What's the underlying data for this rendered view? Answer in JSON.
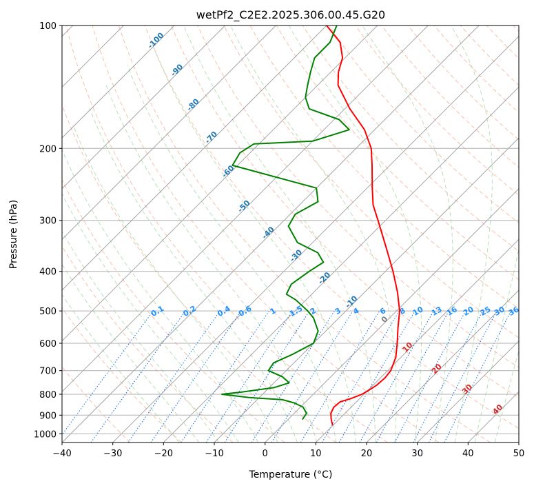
{
  "chart_data": {
    "type": "line",
    "subtype": "skew-t log-p",
    "title": "wetPf2_C2E2.2025.306.00.45.G20",
    "xlabel": "Temperature (°C)",
    "ylabel": "Pressure (hPa)",
    "xlim": [
      -40,
      50
    ],
    "ylim_hpa": [
      1050,
      100
    ],
    "x_ticks": [
      -40,
      -30,
      -20,
      -10,
      0,
      10,
      20,
      30,
      40,
      50
    ],
    "x_tick_labels": [
      "−40",
      "−30",
      "−20",
      "−10",
      "0",
      "10",
      "20",
      "30",
      "40",
      "50"
    ],
    "y_ticks": [
      100,
      200,
      300,
      400,
      500,
      600,
      700,
      800,
      900,
      1000
    ],
    "y_tick_labels": [
      "100",
      "200",
      "300",
      "400",
      "500",
      "600",
      "700",
      "800",
      "900",
      "1000"
    ],
    "grid": true,
    "colors": {
      "temperature": "#ff0000",
      "dewpoint": "#008000",
      "isotherm": "#888888",
      "dry_adiabat": "#f4a58a",
      "moist_adiabat": "#a6d8a6",
      "mixing_ratio": "#1f77e4",
      "isotherm_label_cold": "#1f77b4",
      "isotherm_label_zero": "#808080",
      "isotherm_label_warm": "#d62728",
      "mixing_ratio_label": "#1e90ff"
    },
    "series": [
      {
        "name": "Temperature",
        "color": "#ff0000",
        "points": [
          {
            "p": 950,
            "t": 9.8
          },
          {
            "p": 920,
            "t": 8.4
          },
          {
            "p": 890,
            "t": 7.2
          },
          {
            "p": 860,
            "t": 6.6
          },
          {
            "p": 835,
            "t": 6.8
          },
          {
            "p": 820,
            "t": 8.2
          },
          {
            "p": 800,
            "t": 9.6
          },
          {
            "p": 780,
            "t": 10.2
          },
          {
            "p": 760,
            "t": 10.7
          },
          {
            "p": 730,
            "t": 10.9
          },
          {
            "p": 700,
            "t": 10.6
          },
          {
            "p": 650,
            "t": 9.0
          },
          {
            "p": 600,
            "t": 6.5
          },
          {
            "p": 550,
            "t": 3.6
          },
          {
            "p": 500,
            "t": 0.6
          },
          {
            "p": 450,
            "t": -3.5
          },
          {
            "p": 400,
            "t": -8.5
          },
          {
            "p": 350,
            "t": -14.5
          },
          {
            "p": 300,
            "t": -21.5
          },
          {
            "p": 275,
            "t": -25.5
          },
          {
            "p": 250,
            "t": -29.0
          },
          {
            "p": 220,
            "t": -33.5
          },
          {
            "p": 200,
            "t": -37.0
          },
          {
            "p": 180,
            "t": -42.0
          },
          {
            "p": 160,
            "t": -49.0
          },
          {
            "p": 140,
            "t": -56.0
          },
          {
            "p": 130,
            "t": -58.5
          },
          {
            "p": 120,
            "t": -60.5
          },
          {
            "p": 110,
            "t": -64.0
          },
          {
            "p": 100,
            "t": -70.0
          }
        ]
      },
      {
        "name": "Dewpoint",
        "color": "#008000",
        "points": [
          {
            "p": 920,
            "t": 2.8
          },
          {
            "p": 890,
            "t": 2.4
          },
          {
            "p": 860,
            "t": 0.5
          },
          {
            "p": 840,
            "t": -2.0
          },
          {
            "p": 825,
            "t": -5.0
          },
          {
            "p": 815,
            "t": -12.0
          },
          {
            "p": 800,
            "t": -18.0
          },
          {
            "p": 790,
            "t": -14.5
          },
          {
            "p": 770,
            "t": -9.0
          },
          {
            "p": 750,
            "t": -7.0
          },
          {
            "p": 725,
            "t": -9.5
          },
          {
            "p": 700,
            "t": -13.5
          },
          {
            "p": 670,
            "t": -14.0
          },
          {
            "p": 640,
            "t": -12.0
          },
          {
            "p": 600,
            "t": -10.0
          },
          {
            "p": 560,
            "t": -11.5
          },
          {
            "p": 520,
            "t": -15.0
          },
          {
            "p": 500,
            "t": -17.5
          },
          {
            "p": 470,
            "t": -22.0
          },
          {
            "p": 455,
            "t": -25.0
          },
          {
            "p": 430,
            "t": -26.0
          },
          {
            "p": 400,
            "t": -25.0
          },
          {
            "p": 380,
            "t": -24.0
          },
          {
            "p": 360,
            "t": -27.0
          },
          {
            "p": 340,
            "t": -33.0
          },
          {
            "p": 310,
            "t": -38.0
          },
          {
            "p": 290,
            "t": -39.0
          },
          {
            "p": 270,
            "t": -37.0
          },
          {
            "p": 250,
            "t": -40.0
          },
          {
            "p": 220,
            "t": -61.0
          },
          {
            "p": 205,
            "t": -62.0
          },
          {
            "p": 195,
            "t": -61.0
          },
          {
            "p": 192,
            "t": -50.0
          },
          {
            "p": 180,
            "t": -45.0
          },
          {
            "p": 170,
            "t": -49.0
          },
          {
            "p": 160,
            "t": -57.0
          },
          {
            "p": 150,
            "t": -60.0
          },
          {
            "p": 140,
            "t": -62.0
          },
          {
            "p": 130,
            "t": -64.0
          },
          {
            "p": 120,
            "t": -66.0
          },
          {
            "p": 110,
            "t": -66.0
          },
          {
            "p": 100,
            "t": -68.0
          }
        ]
      }
    ],
    "isotherm_labels": [
      {
        "t": -100,
        "p": 110,
        "label": "-100"
      },
      {
        "t": -90,
        "p": 130,
        "label": "-90"
      },
      {
        "t": -80,
        "p": 158,
        "label": "-80"
      },
      {
        "t": -70,
        "p": 190,
        "label": "-70"
      },
      {
        "t": -60,
        "p": 230,
        "label": "-60"
      },
      {
        "t": -50,
        "p": 280,
        "label": "-50"
      },
      {
        "t": -40,
        "p": 325,
        "label": "-40"
      },
      {
        "t": -30,
        "p": 370,
        "label": "-30"
      },
      {
        "t": -20,
        "p": 420,
        "label": "-20"
      },
      {
        "t": -10,
        "p": 480,
        "label": "-10"
      },
      {
        "t": 0,
        "p": 530,
        "label": "0"
      },
      {
        "t": 10,
        "p": 620,
        "label": "10"
      },
      {
        "t": 20,
        "p": 700,
        "label": "20"
      },
      {
        "t": 30,
        "p": 785,
        "label": "30"
      },
      {
        "t": 40,
        "p": 880,
        "label": "40"
      }
    ],
    "mixing_ratio_lines": [
      0.1,
      0.2,
      0.4,
      0.6,
      1,
      1.5,
      2,
      3,
      4,
      6,
      8,
      10,
      13,
      16,
      20,
      25,
      30,
      36
    ],
    "mixing_ratio_labels": [
      "0.1",
      "0.2",
      "0.4",
      "0.6",
      "1",
      "1.5",
      "2",
      "3",
      "4",
      "6",
      "8",
      "10",
      "13",
      "16",
      "20",
      "25",
      "30",
      "36"
    ],
    "mixing_ratio_label_p": 480,
    "mixing_ratio_top_p": 500
  }
}
